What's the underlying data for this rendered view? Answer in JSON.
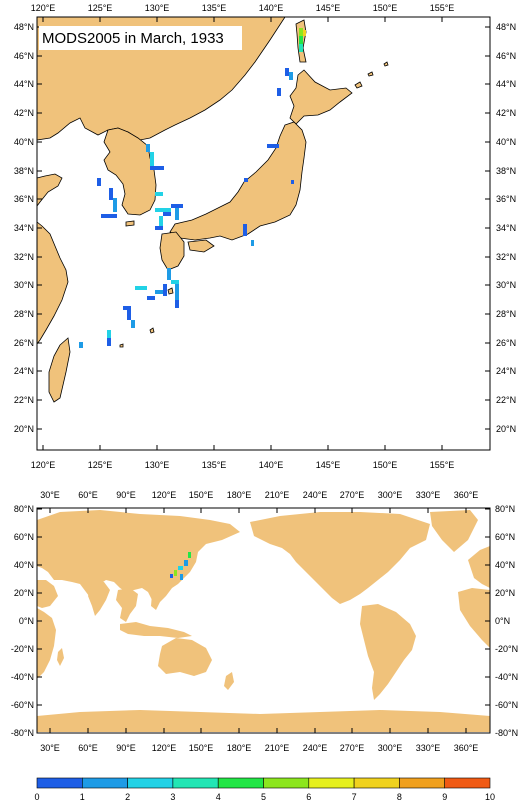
{
  "map_top": {
    "title": "MODS2005 in March, 1933",
    "lon_labels": [
      "120°E",
      "125°E",
      "130°E",
      "135°E",
      "140°E",
      "145°E",
      "150°E",
      "155°E"
    ],
    "lat_labels": [
      "48°N",
      "46°N",
      "44°N",
      "42°N",
      "40°N",
      "38°N",
      "36°N",
      "34°N",
      "32°N",
      "30°N",
      "28°N",
      "26°N",
      "24°N",
      "22°N",
      "20°N"
    ]
  },
  "map_bottom": {
    "lon_labels": [
      "30°E",
      "60°E",
      "90°E",
      "120°E",
      "150°E",
      "180°E",
      "210°E",
      "240°E",
      "270°E",
      "300°E",
      "330°E",
      "360°E"
    ],
    "lat_labels": [
      "80°N",
      "60°N",
      "40°N",
      "20°N",
      "0°N",
      "-20°N",
      "-40°N",
      "-60°N",
      "-80°N"
    ]
  },
  "colorbar": {
    "labels": [
      "0",
      "1",
      "2",
      "3",
      "4",
      "5",
      "6",
      "7",
      "8",
      "9",
      "10"
    ],
    "colors": [
      "#1e5ee6",
      "#1e9be6",
      "#22d2e6",
      "#22e6b4",
      "#22e646",
      "#8ce61e",
      "#e6f01e",
      "#f0d21e",
      "#f0a01e",
      "#f05a14"
    ]
  },
  "colors": {
    "land": "#f0c27b",
    "frame": "#000000"
  }
}
